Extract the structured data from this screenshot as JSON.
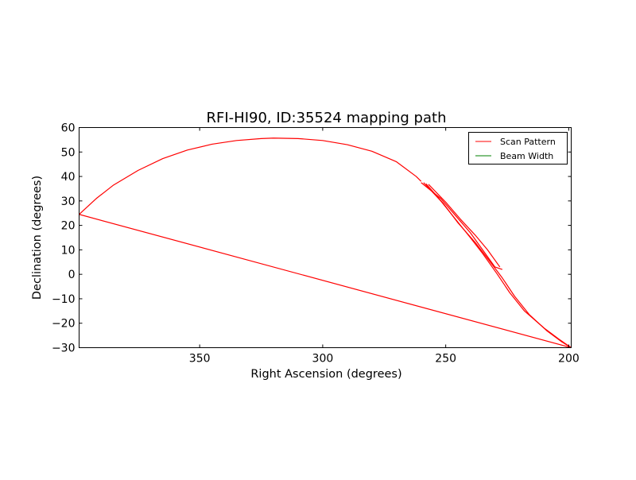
{
  "chart_data": {
    "type": "line",
    "title": "RFI-HI90, ID:35524 mapping path",
    "xlabel": "Right Ascension (degrees)",
    "ylabel": "Declination (degrees)",
    "xlim": [
      399,
      199
    ],
    "ylim": [
      -30,
      60
    ],
    "x_ticks": [
      350,
      300,
      250,
      200
    ],
    "y_ticks": [
      -30,
      -20,
      -10,
      0,
      10,
      20,
      30,
      40,
      50,
      60
    ],
    "x_tick_labels": [
      "350",
      "300",
      "250",
      "200"
    ],
    "y_tick_labels": [
      "−30",
      "−20",
      "−10",
      "0",
      "10",
      "20",
      "30",
      "40",
      "50",
      "60"
    ],
    "grid": false,
    "legend_position": "top-right",
    "series": [
      {
        "name": "Scan Pattern",
        "color": "#ff0000",
        "segments": [
          [
            [
              199,
              -30
            ],
            [
              399,
              24.5
            ],
            [
              392,
              31
            ],
            [
              385,
              36.5
            ],
            [
              375,
              42.5
            ],
            [
              365,
              47.3
            ],
            [
              355,
              50.8
            ],
            [
              345,
              53.2
            ],
            [
              335,
              54.7
            ],
            [
              325,
              55.5
            ],
            [
              320,
              55.7
            ],
            [
              310,
              55.5
            ],
            [
              300,
              54.7
            ],
            [
              290,
              53
            ],
            [
              280,
              50.3
            ],
            [
              270,
              46
            ],
            [
              262,
              40
            ],
            [
              260,
              38
            ]
          ],
          [
            [
              260,
              37.5
            ],
            [
              252,
              31
            ],
            [
              246,
              24
            ],
            [
              240,
              17
            ],
            [
              235,
              10
            ],
            [
              230,
              3
            ],
            [
              227,
              2
            ]
          ],
          [
            [
              259,
              37.5
            ],
            [
              252,
              30
            ],
            [
              246,
              22.5
            ],
            [
              240,
              15
            ],
            [
              235,
              8.5
            ],
            [
              229,
              0
            ],
            [
              224,
              -7.5
            ],
            [
              218,
              -15
            ],
            [
              210,
              -22
            ],
            [
              204,
              -26.5
            ],
            [
              199,
              -30
            ]
          ],
          [
            [
              258,
              37
            ],
            [
              251,
              29
            ],
            [
              245,
              21
            ],
            [
              238,
              13
            ],
            [
              233,
              6.5
            ],
            [
              227,
              -1.5
            ],
            [
              222,
              -9
            ],
            [
              216,
              -16.5
            ],
            [
              209,
              -23
            ],
            [
              203,
              -27.5
            ],
            [
              199,
              -30
            ]
          ],
          [
            [
              257,
              36.8
            ],
            [
              250,
              29.5
            ],
            [
              244,
              22.5
            ],
            [
              238,
              16
            ],
            [
              233,
              10
            ],
            [
              228,
              3
            ]
          ]
        ]
      },
      {
        "name": "Beam Width",
        "color": "#008000",
        "segments": []
      }
    ]
  }
}
